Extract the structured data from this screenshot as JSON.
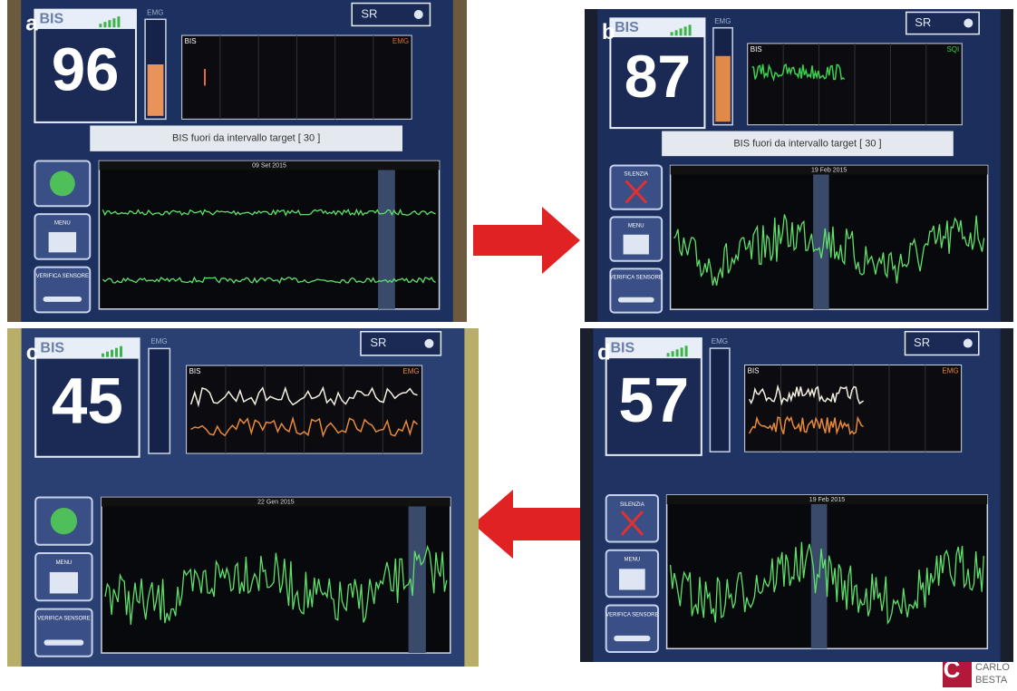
{
  "panels": [
    {
      "label": "a",
      "bis_label": "BIS",
      "bis_value": 96,
      "emg_label": "EMG",
      "sr_label": "SR",
      "trend_labels": [
        "BIS",
        "EMG"
      ],
      "message": "BIS fuori da intervallo target [ 30 ]",
      "eeg_header": "09 Set 2015",
      "buttons": [
        "MENU",
        "VERIFICA SENSORE"
      ]
    },
    {
      "label": "b",
      "bis_label": "BIS",
      "bis_value": 87,
      "emg_label": "EMG",
      "sr_label": "SR",
      "trend_labels": [
        "BIS",
        "SQI"
      ],
      "message": "BIS fuori da intervallo target [ 30 ]",
      "eeg_header": "19 Feb 2015",
      "buttons": [
        "SILENZIA",
        "MENU",
        "VERIFICA SENSORE"
      ]
    },
    {
      "label": "c",
      "bis_label": "BIS",
      "bis_value": 45,
      "emg_label": "EMG",
      "sr_label": "SR",
      "trend_labels": [
        "BIS",
        "EMG"
      ],
      "eeg_header": "22 Gen 2015",
      "buttons": [
        "MENU",
        "VERIFICA SENSORE"
      ]
    },
    {
      "label": "d",
      "bis_label": "BIS",
      "bis_value": 57,
      "emg_label": "EMG",
      "sr_label": "SR",
      "trend_labels": [
        "BIS",
        "EMG"
      ],
      "eeg_header": "19 Feb 2015",
      "buttons": [
        "SILENZIA",
        "MENU",
        "VERIFICA SENSORE"
      ]
    }
  ],
  "logo": {
    "lines": [
      "CARLO",
      "BESTA"
    ]
  }
}
